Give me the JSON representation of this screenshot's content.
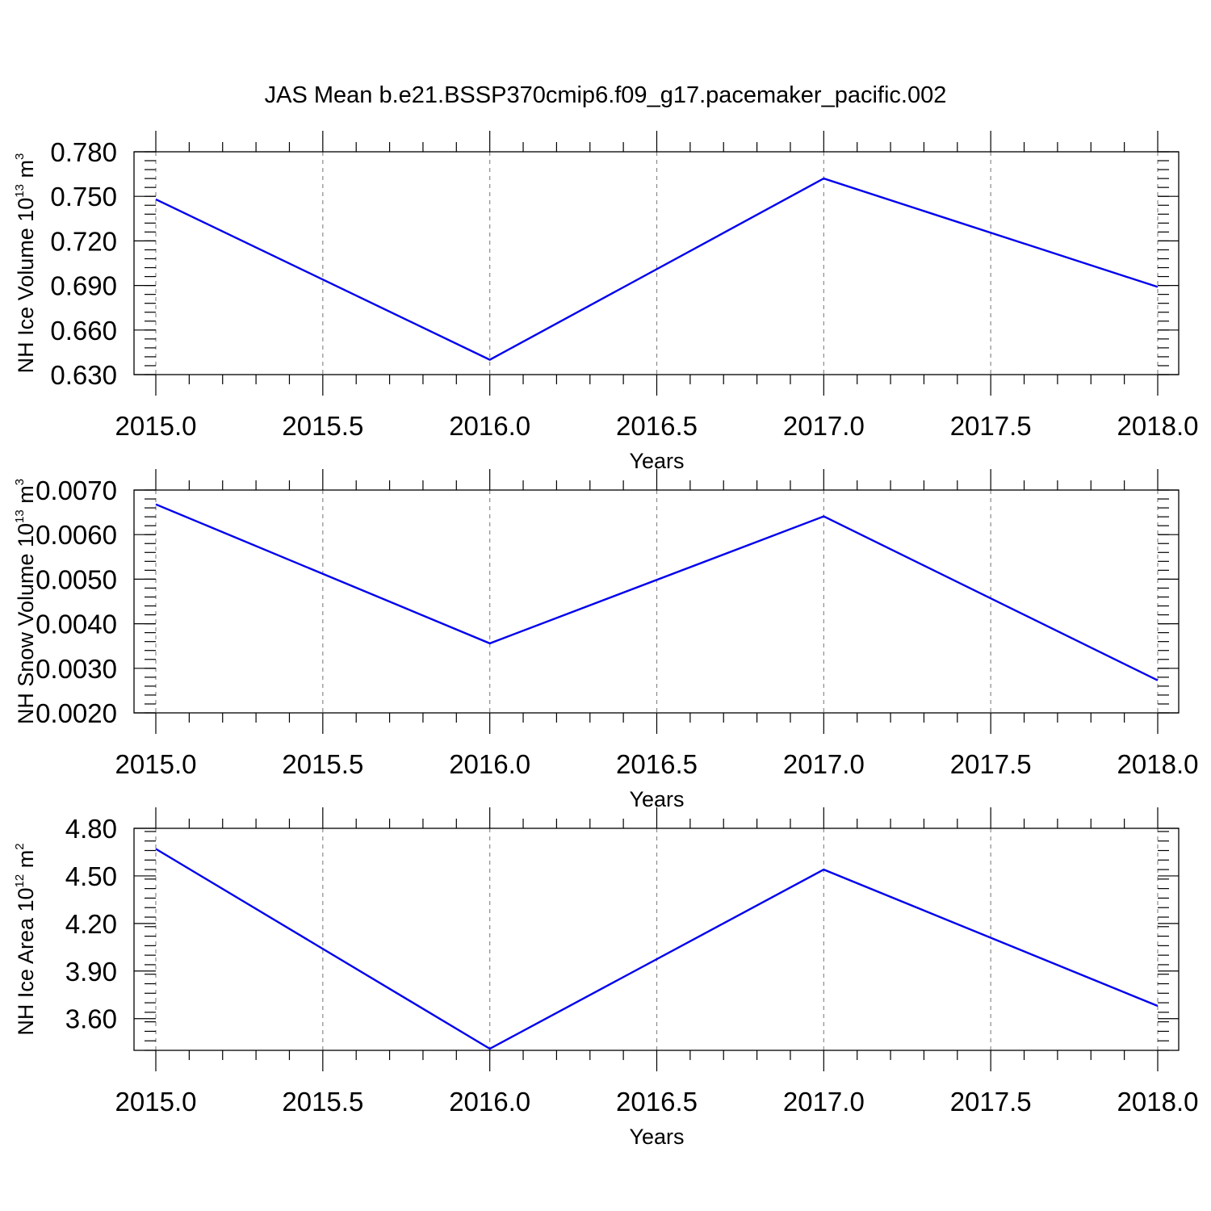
{
  "title": "JAS Mean b.e21.BSSP370cmip6.f09_g17.pacemaker_pacific.002",
  "colors": {
    "series": "#0000ee",
    "grid": "#8a8a8a",
    "axis": "#000000"
  },
  "chart_data": [
    {
      "type": "line",
      "xlabel": "Years",
      "ylabel": {
        "text": "NH Ice Volume 10",
        "exponent": "13",
        "unit": "m",
        "unit_exponent": "3"
      },
      "xlim": [
        2015.0,
        2018.0
      ],
      "ylim": [
        0.63,
        0.78
      ],
      "x_ticks": [
        "2015.0",
        "2015.5",
        "2016.0",
        "2016.5",
        "2017.0",
        "2017.5",
        "2018.0"
      ],
      "y_ticks": [
        "0.630",
        "0.660",
        "0.690",
        "0.720",
        "0.750",
        "0.780"
      ],
      "grid": true,
      "series": [
        {
          "x": [
            2015,
            2016,
            2017,
            2018
          ],
          "values": [
            0.748,
            0.64,
            0.762,
            0.689
          ]
        }
      ]
    },
    {
      "type": "line",
      "xlabel": "Years",
      "ylabel": {
        "text": "NH Snow Volume 10",
        "exponent": "13",
        "unit": "m",
        "unit_exponent": "3"
      },
      "xlim": [
        2015.0,
        2018.0
      ],
      "ylim": [
        0.002,
        0.007
      ],
      "x_ticks": [
        "2015.0",
        "2015.5",
        "2016.0",
        "2016.5",
        "2017.0",
        "2017.5",
        "2018.0"
      ],
      "y_ticks": [
        "0.0020",
        "0.0030",
        "0.0040",
        "0.0050",
        "0.0060",
        "0.0070"
      ],
      "grid": true,
      "series": [
        {
          "x": [
            2015,
            2016,
            2017,
            2018
          ],
          "values": [
            0.00668,
            0.00356,
            0.00641,
            0.00273
          ]
        }
      ]
    },
    {
      "type": "line",
      "xlabel": "Years",
      "ylabel": {
        "text": "NH Ice Area 10",
        "exponent": "12",
        "unit": "m",
        "unit_exponent": "2"
      },
      "xlim": [
        2015.0,
        2018.0
      ],
      "ylim": [
        3.4,
        4.8
      ],
      "x_ticks": [
        "2015.0",
        "2015.5",
        "2016.0",
        "2016.5",
        "2017.0",
        "2017.5",
        "2018.0"
      ],
      "y_ticks": [
        "3.60",
        "3.90",
        "4.20",
        "4.50",
        "4.80"
      ],
      "grid": true,
      "series": [
        {
          "x": [
            2015,
            2016,
            2017,
            2018
          ],
          "values": [
            4.67,
            3.41,
            4.54,
            3.68
          ]
        }
      ]
    }
  ]
}
